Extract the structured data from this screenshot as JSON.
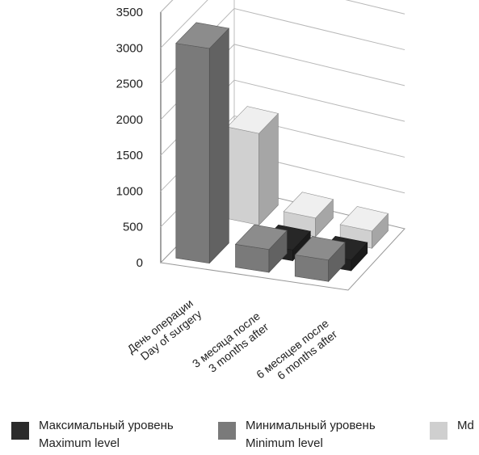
{
  "chart_data": {
    "type": "bar",
    "categories": [
      {
        "line1": "День операции",
        "line2": "Day of surgery"
      },
      {
        "line1": "3 месяца после",
        "line2": "3 months after"
      },
      {
        "line1": "6 месяцев после",
        "line2": "6 months after"
      }
    ],
    "series": [
      {
        "name_ru": "Максимальный уровень",
        "name_en": "Maximum level",
        "color": "#222222",
        "values": [
          null,
          150,
          150
        ]
      },
      {
        "name_ru": "Минимальный уровень",
        "name_en": "Minimum level",
        "color": "#7a7a7a",
        "values": [
          3000,
          320,
          300
        ]
      },
      {
        "name_ru": "",
        "name_en": "Md",
        "color": "#d0d0d0",
        "values": [
          1280,
          260,
          240
        ]
      }
    ],
    "yticks": [
      0,
      500,
      1000,
      1500,
      2000,
      2500,
      3000,
      3500
    ],
    "ylim": [
      0,
      3500
    ],
    "grid": true,
    "legend_position": "bottom"
  }
}
